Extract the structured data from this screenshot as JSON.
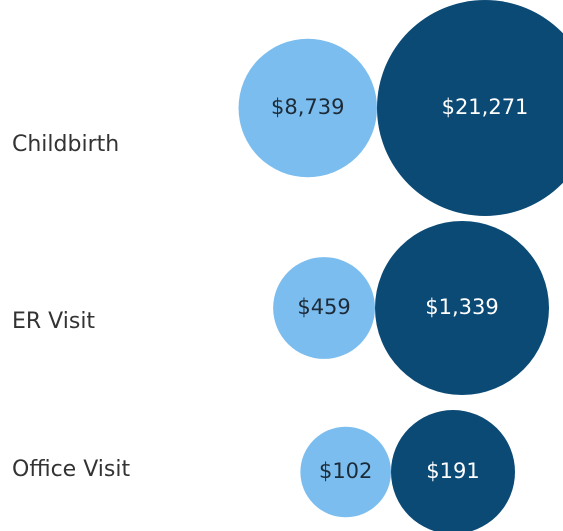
{
  "chart_data": {
    "type": "paired-bubble",
    "categories": [
      "Childbirth",
      "ER Visit",
      "Office Visit"
    ],
    "series": [
      {
        "color": "#7bbdee",
        "values": [
          8739,
          459,
          102
        ],
        "value_labels": [
          "$8,739",
          "$459",
          "$102"
        ]
      },
      {
        "color": "#0b4a75",
        "values": [
          21271,
          1339,
          191
        ],
        "value_labels": [
          "$21,271",
          "$1,339",
          "$191"
        ]
      }
    ]
  }
}
